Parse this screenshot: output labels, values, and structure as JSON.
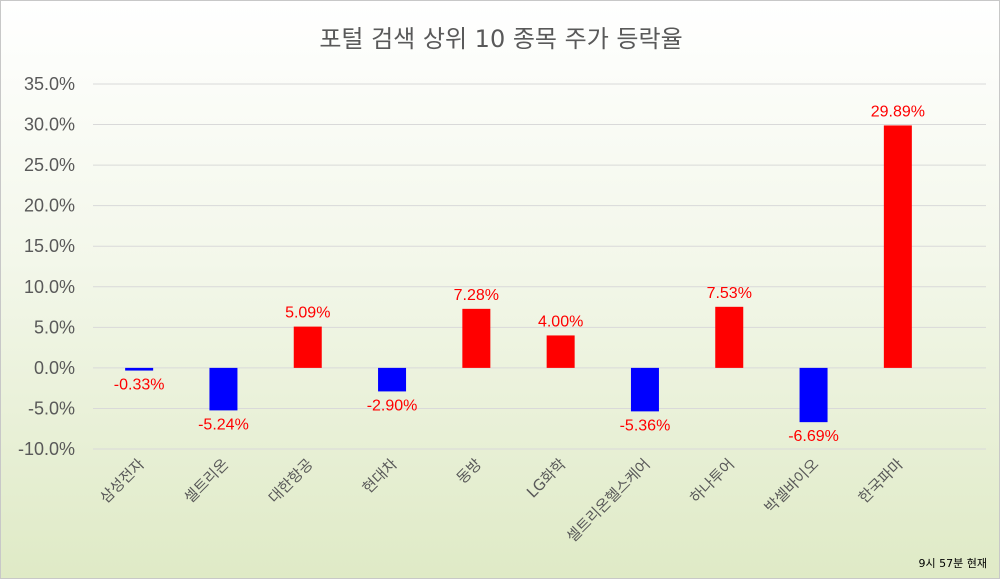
{
  "chart_data": {
    "type": "bar",
    "title": "포털 검색 상위 10 종목 주가 등락율",
    "categories": [
      "삼성전자",
      "셀트리온",
      "대한항공",
      "현대차",
      "동방",
      "LG화학",
      "셀트리온헬스케어",
      "하나투어",
      "박셀바이오",
      "한국파마"
    ],
    "values": [
      -0.33,
      -5.24,
      5.09,
      -2.9,
      7.28,
      4.0,
      -5.36,
      7.53,
      -6.69,
      29.89
    ],
    "data_labels": [
      "-0.33%",
      "-5.24%",
      "5.09%",
      "-2.90%",
      "7.28%",
      "4.00%",
      "-5.36%",
      "7.53%",
      "-6.69%",
      "29.89%"
    ],
    "y_ticks": [
      "35.0%",
      "30.0%",
      "25.0%",
      "20.0%",
      "15.0%",
      "10.0%",
      "5.0%",
      "0.0%",
      "-5.0%",
      "-10.0%"
    ],
    "ylim": [
      -10,
      35
    ],
    "grid": true,
    "legend": "none",
    "colors": {
      "positive": "#ff0000",
      "negative": "#0000ff",
      "label": "#ff0000",
      "gridline": "#d9d9d9",
      "axis_text": "#595959"
    }
  },
  "note": "9시 57분 현재"
}
